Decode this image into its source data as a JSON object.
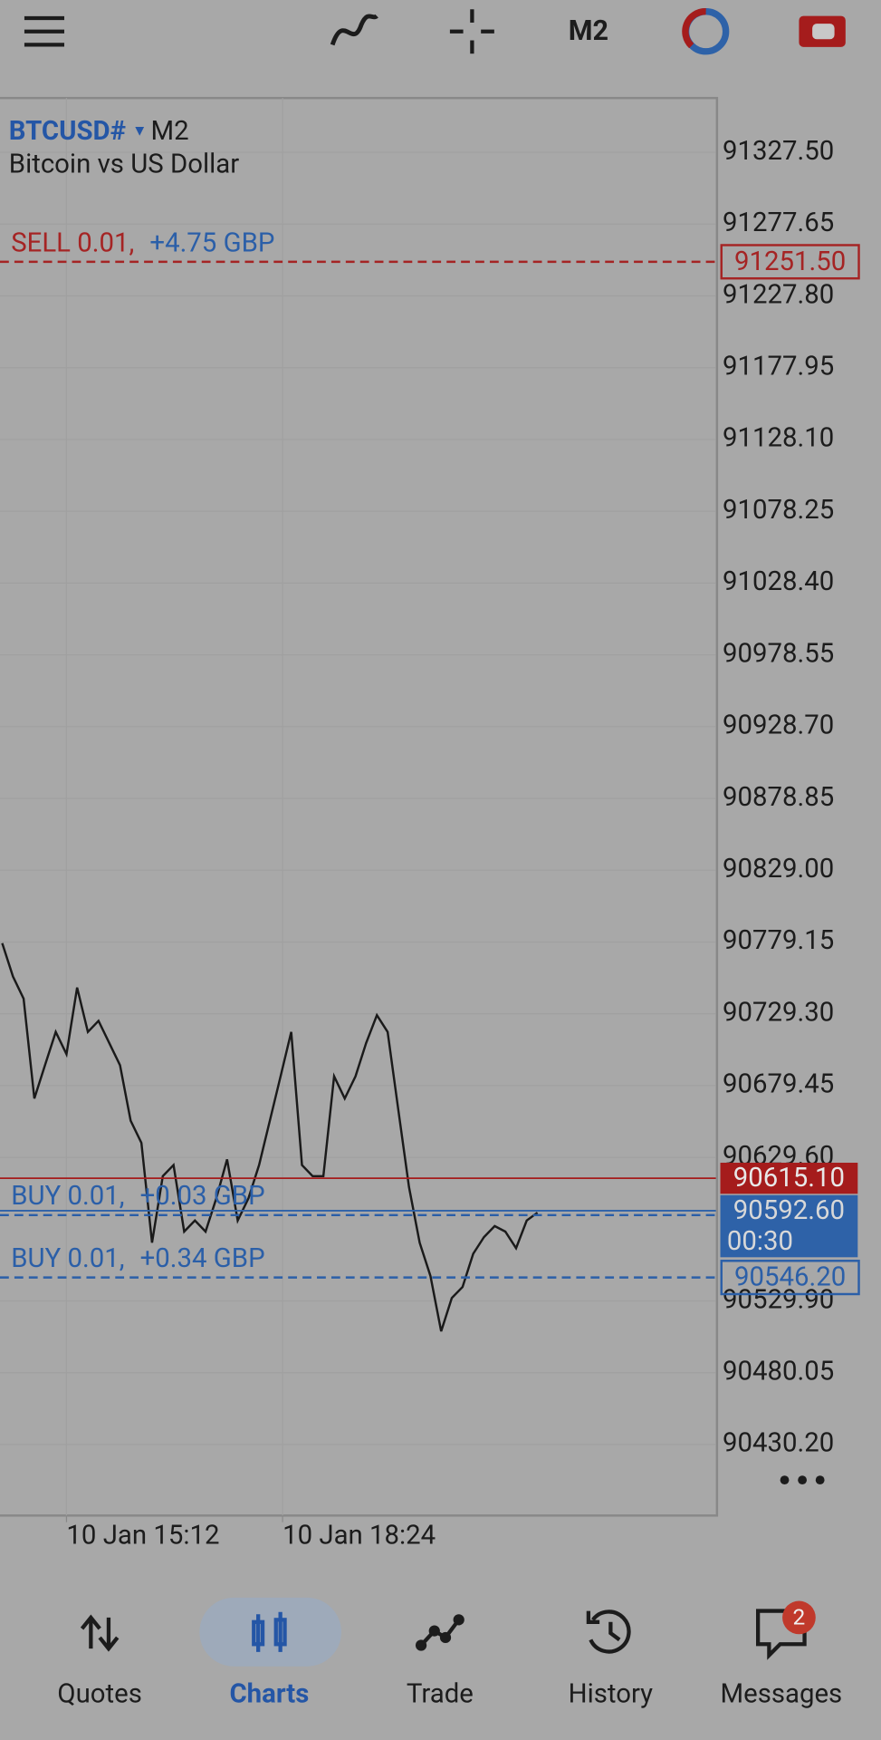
{
  "toolbar": {
    "timeframe": "M2"
  },
  "chart": {
    "type": "line",
    "symbol": "BTCUSD#",
    "timeframe": "M2",
    "description": "Bitcoin vs US Dollar",
    "ylim": [
      90380.9,
      91365.2
    ],
    "yticks": [
      {
        "value": 91327.5,
        "label": "91327.50"
      },
      {
        "value": 91277.65,
        "label": "91277.65"
      },
      {
        "value": 91227.8,
        "label": "91227.80"
      },
      {
        "value": 91177.95,
        "label": "91177.95"
      },
      {
        "value": 91128.1,
        "label": "91128.10"
      },
      {
        "value": 91078.25,
        "label": "91078.25"
      },
      {
        "value": 91028.4,
        "label": "91028.40"
      },
      {
        "value": 90978.55,
        "label": "90978.55"
      },
      {
        "value": 90928.7,
        "label": "90928.70"
      },
      {
        "value": 90878.85,
        "label": "90878.85"
      },
      {
        "value": 90829,
        "label": "90829.00"
      },
      {
        "value": 90779.15,
        "label": "90779.15"
      },
      {
        "value": 90729.3,
        "label": "90729.30"
      },
      {
        "value": 90679.45,
        "label": "90679.45"
      },
      {
        "value": 90629.6,
        "label": "90629.60"
      },
      {
        "value": 90529.9,
        "label": "90529.90"
      },
      {
        "value": 90480.05,
        "label": "90480.05"
      },
      {
        "value": 90430.2,
        "label": "90430.20"
      }
    ],
    "xticks": [
      "10 Jan 15:12",
      "10 Jan 18:24"
    ],
    "color": "#1a1a1a",
    "values": [
      90778.3,
      90755.2,
      90739.8,
      90670.5,
      90693.6,
      90716.7,
      90701.3,
      90747.5,
      90716.7,
      90724.4,
      90709.0,
      90693.6,
      90655.1,
      90639.7,
      90570.4,
      90616.6,
      90624.3,
      90578.1,
      90585.8,
      90578.1,
      90601.2,
      90628.2,
      90585.8,
      90601.2,
      90624.3,
      90655.1,
      90685.9,
      90716.7,
      90624.3,
      90616.6,
      90616.6,
      90685.9,
      90670.5,
      90685.9,
      90709.0,
      90728.3,
      90716.7,
      90662.8,
      90608.9,
      90570.4,
      90547.3,
      90508.8,
      90531.9,
      90539.6,
      90562.7,
      90574.2,
      90581.9,
      90578.1,
      90566.5,
      90585.8,
      90591.2
    ],
    "orders": [
      {
        "label": "SELL 0.01,",
        "profit": "+4.75 GBP",
        "price": 91251.5,
        "price_label": "91251.50",
        "color": "#a52424"
      },
      {
        "label": "BUY 0.01,",
        "profit": "+0.03 GBP",
        "price": 90589.5,
        "color": "#2b5fa8"
      },
      {
        "label": "BUY 0.01,",
        "profit": "+0.34 GBP",
        "price": 90546.2,
        "price_label": "90546.20",
        "color": "#2b5fa8"
      }
    ],
    "ask": {
      "value": 90615.1,
      "label": "90615.10",
      "color": "#a51c1c"
    },
    "bid": {
      "value": 90592.6,
      "label": "90592.60",
      "timer": "00:30",
      "color": "#2e62a8"
    }
  },
  "nav": [
    {
      "label": "Quotes"
    },
    {
      "label": "Charts"
    },
    {
      "label": "Trade"
    },
    {
      "label": "History"
    },
    {
      "label": "Messages"
    }
  ],
  "messages_badge": "2"
}
